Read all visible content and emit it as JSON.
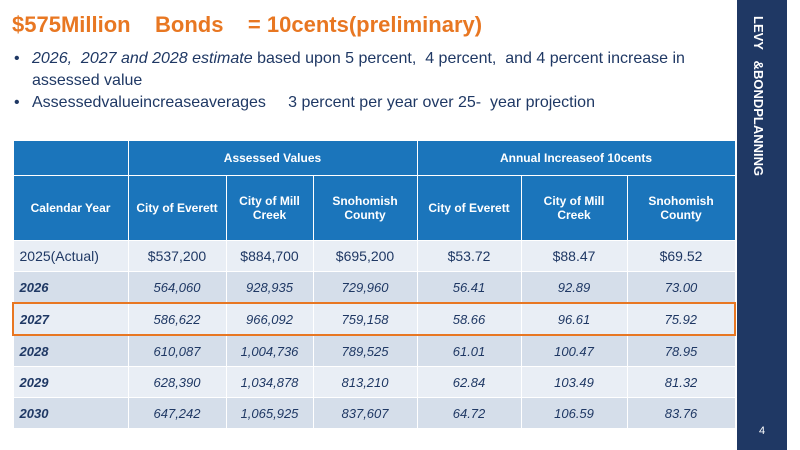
{
  "header": {
    "title": "$575Million    Bonds    = 10cents(preliminary)",
    "bullets": [
      {
        "italic": "2026,  2027 and 2028 estimate",
        "text": "based upon 5 percent,  4 percent,  and 4 percent increase in assessed value"
      },
      {
        "text": "Assessedvalueincreaseaverages     3 percent per year over 25-  year projection"
      }
    ]
  },
  "sidebar": {
    "label": "LEVY   &BONDPLANNING",
    "page_number": "4"
  },
  "table": {
    "group_headers": [
      "Assessed     Values",
      "Annual    Increaseof     10cents"
    ],
    "columns": [
      "Calendar Year",
      "City of Everett",
      "City of Mill Creek",
      "Snohomish County",
      "City of Everett",
      "City of Mill Creek",
      "Snohomish County"
    ],
    "rows": [
      [
        "2025(Actual)",
        "$537,200",
        "$884,700",
        "$695,200",
        "$53.72",
        "$88.47",
        "$69.52"
      ],
      [
        "2026",
        "564,060",
        "928,935",
        "729,960",
        "56.41",
        "92.89",
        "73.00"
      ],
      [
        "2027",
        "586,622",
        "966,092",
        "759,158",
        "58.66",
        "96.61",
        "75.92"
      ],
      [
        "2028",
        "610,087",
        "1,004,736",
        "789,525",
        "61.01",
        "100.47",
        "78.95"
      ],
      [
        "2029",
        "628,390",
        "1,034,878",
        "813,210",
        "62.84",
        "103.49",
        "81.32"
      ],
      [
        "2030",
        "647,242",
        "1,065,925",
        "837,607",
        "64.72",
        "106.59",
        "83.76"
      ]
    ]
  }
}
